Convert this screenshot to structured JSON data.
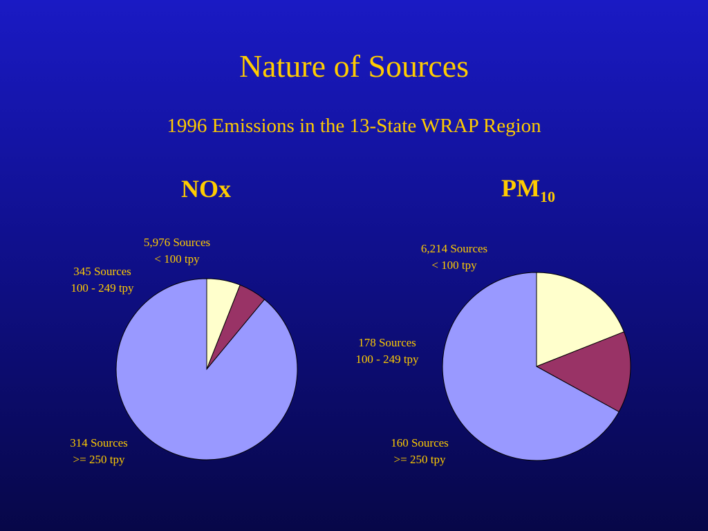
{
  "slide": {
    "title": "Nature of Sources",
    "subtitle": "1996 Emissions in the 13-State WRAP Region"
  },
  "colors": {
    "text": "#ffcc00",
    "large": "#9999ff",
    "medium": "#993366",
    "small": "#ffffcc",
    "outline": "#000000"
  },
  "chart_data": [
    {
      "type": "pie",
      "title": "NOx",
      "title_sub": "",
      "labels": [
        {
          "count": "5,976 Sources",
          "range": "< 100 tpy"
        },
        {
          "count": "345 Sources",
          "range": "100 - 249 tpy"
        },
        {
          "count": "314 Sources",
          "range": ">= 250 tpy"
        }
      ],
      "slices": [
        {
          "name": "< 100 tpy",
          "value": 6,
          "color": "#ffffcc"
        },
        {
          "name": "100 - 249 tpy",
          "value": 5,
          "color": "#993366"
        },
        {
          "name": ">= 250 tpy",
          "value": 89,
          "color": "#9999ff"
        }
      ]
    },
    {
      "type": "pie",
      "title": "PM",
      "title_sub": "10",
      "labels": [
        {
          "count": "6,214 Sources",
          "range": "< 100 tpy"
        },
        {
          "count": "178 Sources",
          "range": "100 - 249 tpy"
        },
        {
          "count": "160 Sources",
          "range": ">= 250 tpy"
        }
      ],
      "slices": [
        {
          "name": "< 100 tpy",
          "value": 19,
          "color": "#ffffcc"
        },
        {
          "name": "100 - 249 tpy",
          "value": 14,
          "color": "#993366"
        },
        {
          "name": ">= 250 tpy",
          "value": 67,
          "color": "#9999ff"
        }
      ]
    }
  ]
}
